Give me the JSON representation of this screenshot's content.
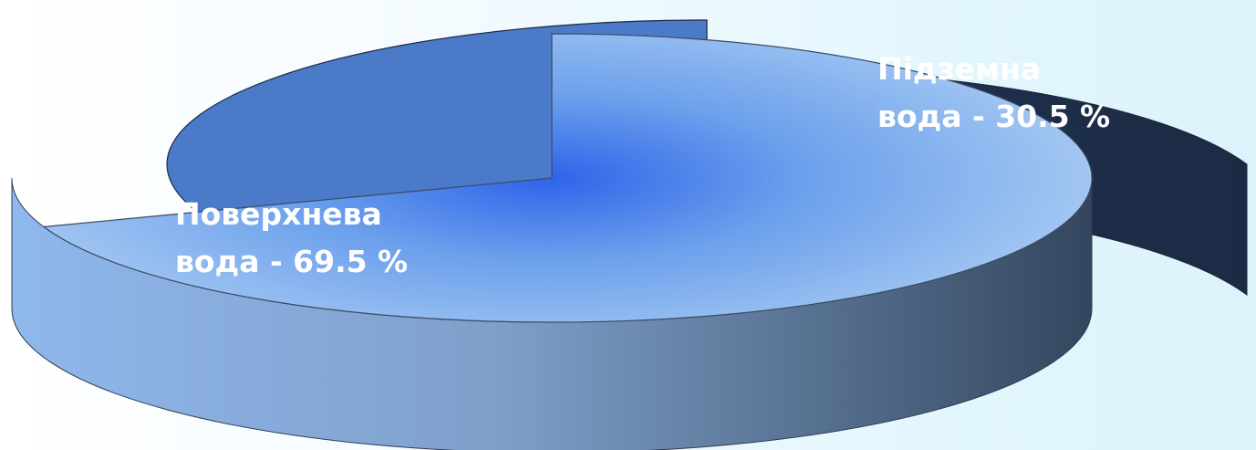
{
  "chart_data": {
    "type": "pie",
    "style": "3d-exploded",
    "slices": [
      {
        "label_line1": "Поверхнева",
        "label_line2": "вода - 69.5 %",
        "value": 69.5,
        "color": "#3f78e6",
        "exploded": false
      },
      {
        "label_line1": "Підземна",
        "label_line2": "вода -  30.5 %",
        "value": 30.5,
        "color": "#2f62c4",
        "exploded": true
      }
    ]
  }
}
